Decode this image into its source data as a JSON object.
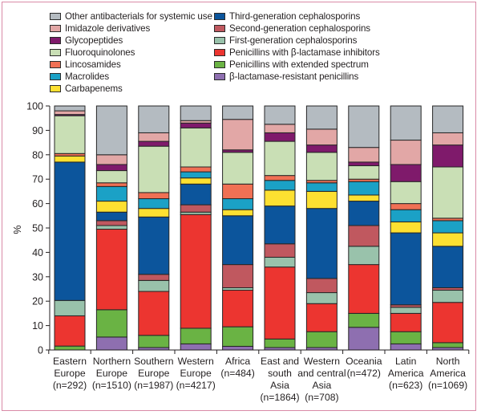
{
  "chart_data": {
    "type": "bar",
    "stacked": true,
    "title": "",
    "xlabel": "",
    "ylabel": "%",
    "ylim": [
      0,
      100
    ],
    "yticks": [
      0,
      10,
      20,
      30,
      40,
      50,
      60,
      70,
      80,
      90,
      100
    ],
    "grid": false,
    "legend_position": "top",
    "categories": [
      [
        "Eastern",
        "Europe",
        "(n=292)"
      ],
      [
        "Northern",
        "Europe",
        "(n=1510)"
      ],
      [
        "Southern",
        "Europe",
        "(n=1987)"
      ],
      [
        "Western",
        "Europe",
        "(n=4217)"
      ],
      [
        "Africa",
        "(n=484)"
      ],
      [
        "East and",
        "south",
        "Asia",
        "(n=1864)"
      ],
      [
        "Western",
        "and central",
        "Asia",
        "(n=708)"
      ],
      [
        "Oceania",
        "(n=472)"
      ],
      [
        "Latin",
        "America",
        "(n=623)"
      ],
      [
        "North",
        "America",
        "(n=1069)"
      ]
    ],
    "series": [
      {
        "name": "β-lactamase-resistant penicillins",
        "color": "#8e6fb0",
        "values": [
          0,
          5.3,
          1,
          2.5,
          1.5,
          1,
          1,
          9.3,
          2.5,
          1
        ]
      },
      {
        "name": "Penicillins with extended spectrum",
        "color": "#6ab344",
        "values": [
          1.6,
          11.2,
          5,
          6.4,
          8,
          3.5,
          6.5,
          5.7,
          5,
          2
        ]
      },
      {
        "name": "Penicillins with β-lactamase inhibitors",
        "color": "#ec3530",
        "values": [
          12.4,
          33,
          18,
          46.6,
          15,
          29.5,
          11.5,
          20,
          7.5,
          16.5
        ]
      },
      {
        "name": "First-generation cephalosporins",
        "color": "#99c2ab",
        "values": [
          6.3,
          1.5,
          4.5,
          1,
          1,
          4,
          4.5,
          7.5,
          2.5,
          5
        ]
      },
      {
        "name": "Second-generation cephalosporins",
        "color": "#c0585f",
        "values": [
          0,
          2,
          2.5,
          3,
          9.5,
          5.5,
          5.8,
          8.5,
          1,
          1
        ]
      },
      {
        "name": "Third-generation cephalosporins",
        "color": "#0c559c",
        "values": [
          56.7,
          3.5,
          23.5,
          8.5,
          20,
          15.5,
          28.7,
          10,
          29.5,
          17
        ]
      },
      {
        "name": "Carbapenems",
        "color": "#fde031",
        "values": [
          2.5,
          4.5,
          3.5,
          2.5,
          2.5,
          6.5,
          7,
          2.5,
          4.5,
          5.5
        ]
      },
      {
        "name": "Macrolides",
        "color": "#1ba1c6",
        "values": [
          0,
          6,
          4,
          2.5,
          4.5,
          4,
          3.5,
          5.5,
          5,
          5
        ]
      },
      {
        "name": "Lincosamides",
        "color": "#f07054",
        "values": [
          1,
          1.5,
          2.5,
          2,
          6,
          2,
          1,
          1,
          2.5,
          1
        ]
      },
      {
        "name": "Fluoroquinolones",
        "color": "#c9dfb5",
        "values": [
          15.5,
          5,
          19,
          16,
          13,
          14,
          11.5,
          5.5,
          9,
          21
        ]
      },
      {
        "name": "Glycopeptides",
        "color": "#7f1a6b",
        "values": [
          0.5,
          2.5,
          2,
          2,
          1,
          3.5,
          3,
          1.5,
          7,
          9
        ]
      },
      {
        "name": "Imidazole derivatives",
        "color": "#e2a7a6",
        "values": [
          1.5,
          4,
          3.5,
          1,
          12.5,
          3.5,
          6.5,
          6,
          10,
          5
        ]
      },
      {
        "name": "Other antibacterials for systemic use",
        "color": "#b4bbc1",
        "values": [
          2,
          20,
          11,
          6,
          5.5,
          7.5,
          9.5,
          17,
          14,
          11
        ]
      }
    ]
  },
  "legend": {
    "left": [
      {
        "label": "Other antibacterials for systemic use",
        "color": "#b4bbc1"
      },
      {
        "label": "Imidazole derivatives",
        "color": "#e2a7a6"
      },
      {
        "label": "Glycopeptides",
        "color": "#7f1a6b"
      },
      {
        "label": "Fluoroquinolones",
        "color": "#c9dfb5"
      },
      {
        "label": "Lincosamides",
        "color": "#f07054"
      },
      {
        "label": "Macrolides",
        "color": "#1ba1c6"
      },
      {
        "label": "Carbapenems",
        "color": "#fde031"
      }
    ],
    "right": [
      {
        "label": "Third-generation cephalosporins",
        "color": "#0c559c"
      },
      {
        "label": "Second-generation cephalosporins",
        "color": "#c0585f"
      },
      {
        "label": "First-generation cephalosporins",
        "color": "#99c2ab"
      },
      {
        "label": "Penicillins with β-lactamase inhibitors",
        "color": "#ec3530"
      },
      {
        "label": "Penicillins with extended spectrum",
        "color": "#6ab344"
      },
      {
        "label": "β-lactamase-resistant penicillins",
        "color": "#8e6fb0"
      }
    ]
  }
}
